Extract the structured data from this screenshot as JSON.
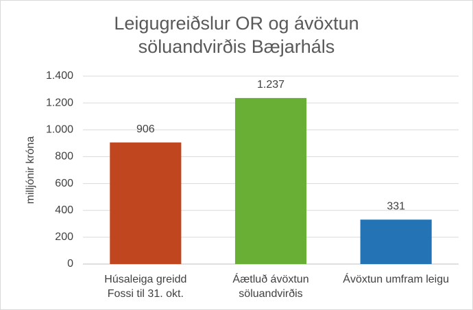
{
  "chart_data": {
    "type": "bar",
    "title": "Leigugreiðslur OR og ávöxtun\nsöluandvirðis Bæjarháls",
    "y_label": "milljónir króna",
    "categories": [
      "Húsaleiga greidd\nFossi til 31. okt.",
      "Áætluð ávöxtun\nsöluandvirðis",
      "Ávöxtun umfram leigu"
    ],
    "values": [
      906,
      1237,
      331
    ],
    "value_labels": [
      "906",
      "1.237",
      "331"
    ],
    "colors": [
      "#c0461f",
      "#6aaf35",
      "#2474b5"
    ],
    "ylim": [
      0,
      1400
    ],
    "yticks": [
      0,
      200,
      400,
      600,
      800,
      {
        "value": 1000,
        "label": "1.000"
      },
      {
        "value": 1200,
        "label": "1.200"
      },
      {
        "value": 1400,
        "label": "1.400"
      }
    ],
    "grid": true
  }
}
